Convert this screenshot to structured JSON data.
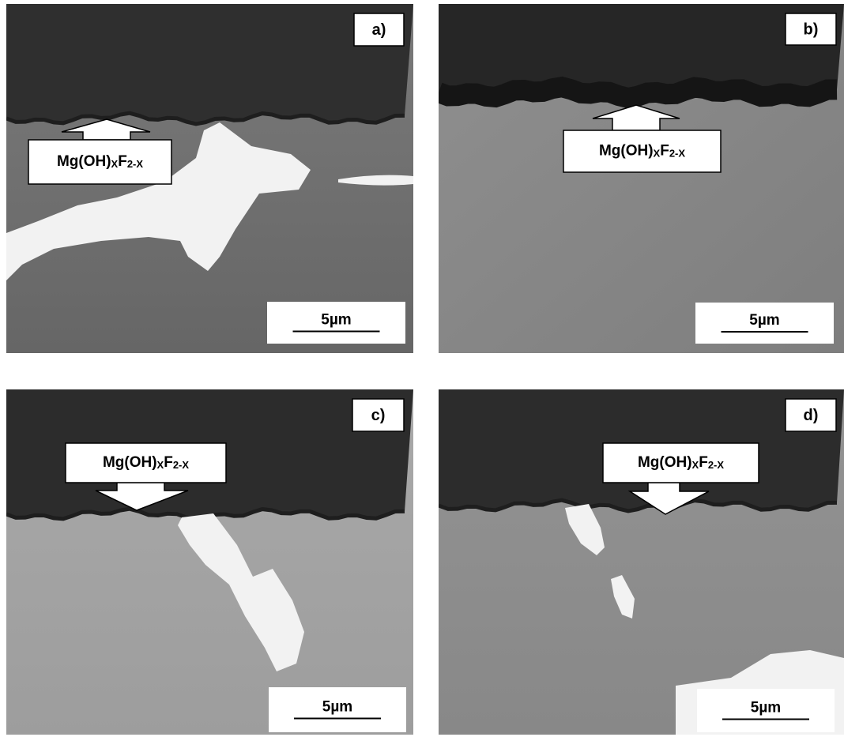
{
  "panels": [
    {
      "label": "a)",
      "annotation": [
        "Mg(OH)",
        "X",
        "F",
        "2-X"
      ],
      "scale_bar": "5µm"
    },
    {
      "label": "b)",
      "annotation": [
        "Mg(OH)",
        "X",
        "F",
        "2-X"
      ],
      "scale_bar": "5µm"
    },
    {
      "label": "c)",
      "annotation": [
        "Mg(OH)",
        "X",
        "F",
        "2-X"
      ],
      "scale_bar": "5µm"
    },
    {
      "label": "d)",
      "annotation": [
        "Mg(OH)",
        "X",
        "F",
        "2-X"
      ],
      "scale_bar": "5µm"
    }
  ]
}
